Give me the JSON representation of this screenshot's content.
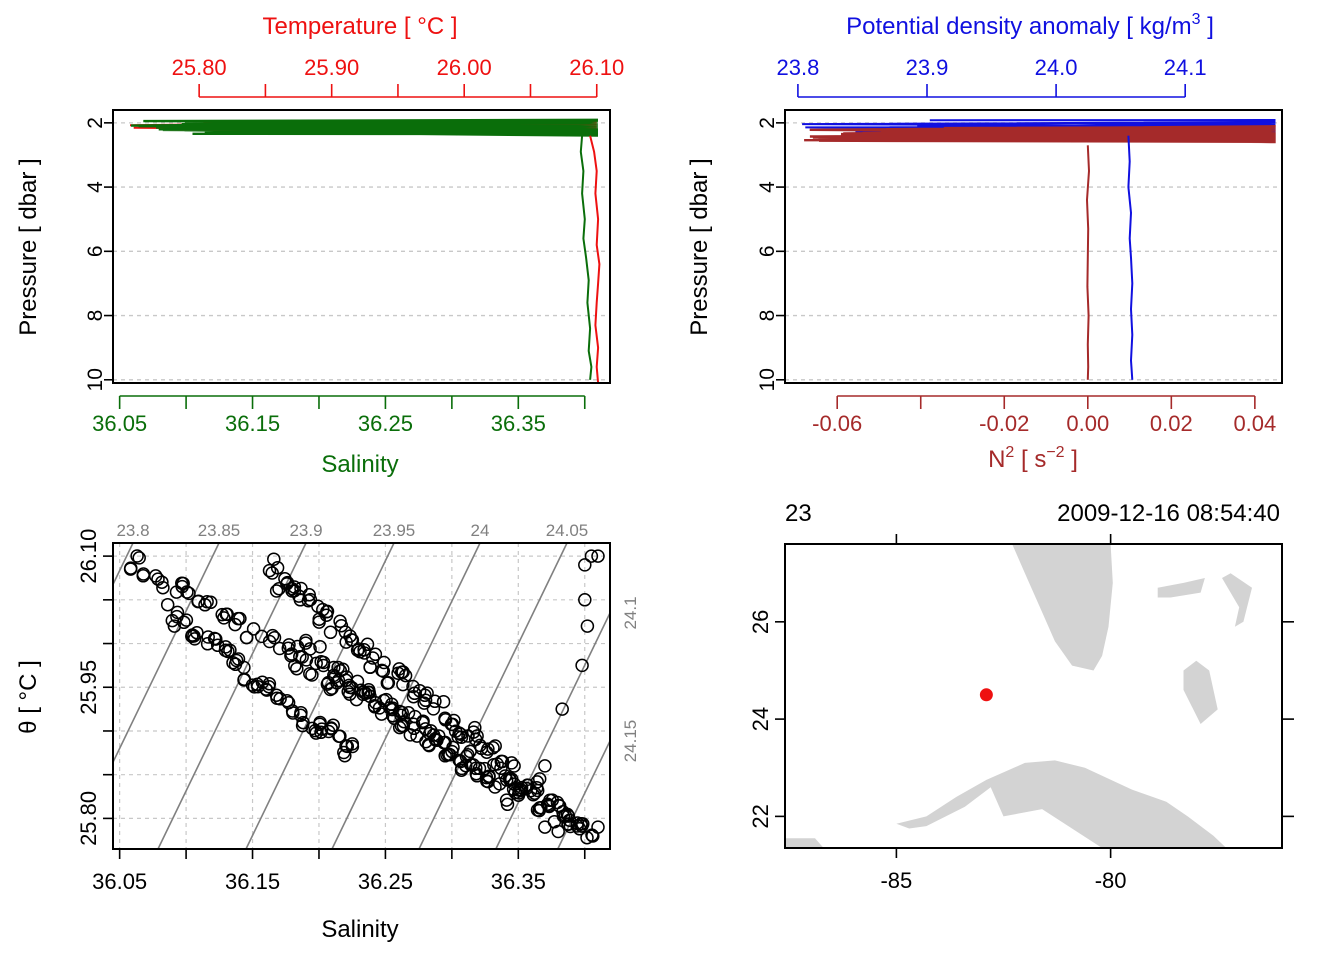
{
  "colors": {
    "temperature": "#ee1111",
    "salinity": "#0a6e0a",
    "density": "#1010e0",
    "n2": "#a52a2a",
    "grid": "#c8c8c8",
    "isopycnal": "#808080",
    "land": "#d3d3d3",
    "station": "#ee1111"
  },
  "chart_data": [
    {
      "id": "ts_profile",
      "type": "line",
      "title_top": "Temperature [ °C ]",
      "xlabel_bottom": "Salinity",
      "ylabel": "Pressure [ dbar ]",
      "ylim": [
        10.1,
        1.6
      ],
      "y_ticks": [
        2,
        4,
        6,
        8,
        10
      ],
      "y_tick_labels": [
        "2",
        "4",
        "6",
        "8",
        "10"
      ],
      "top_axis": {
        "range": [
          25.735,
          26.11
        ],
        "ticks": [
          25.8,
          25.85,
          25.9,
          25.95,
          26.0,
          26.05,
          26.1
        ],
        "labels": [
          "25.80",
          "",
          "25.90",
          "",
          "26.00",
          "",
          "26.10"
        ]
      },
      "bottom_axis": {
        "range": [
          36.045,
          36.419
        ],
        "ticks": [
          36.05,
          36.1,
          36.15,
          36.2,
          36.25,
          36.3,
          36.35,
          36.4
        ],
        "labels": [
          "36.05",
          "",
          "36.15",
          "",
          "36.25",
          "",
          "36.35",
          ""
        ]
      },
      "series": [
        {
          "name": "Temperature",
          "color_key": "temperature",
          "x": [
            26.095,
            26.098,
            26.1,
            26.099,
            26.101,
            26.1,
            26.102,
            26.101,
            26.1,
            26.099,
            26.101,
            26.1,
            26.101
          ],
          "y": [
            2.4,
            2.9,
            3.5,
            4.2,
            5.0,
            5.8,
            6.4,
            7.0,
            7.6,
            8.3,
            9.0,
            9.6,
            10.1
          ]
        },
        {
          "name": "Salinity",
          "color_key": "salinity",
          "x": [
            36.398,
            36.397,
            36.399,
            36.398,
            36.4,
            36.399,
            36.401,
            36.403,
            36.402,
            36.404,
            36.403,
            36.405,
            36.404
          ],
          "y": [
            2.4,
            2.9,
            3.5,
            4.2,
            5.0,
            5.6,
            6.2,
            6.9,
            7.6,
            8.4,
            9.1,
            9.6,
            10.0
          ]
        }
      ],
      "surface_temperature_loops": {
        "x": [
          25.74,
          26.1
        ],
        "y": [
          1.9,
          2.3
        ]
      },
      "surface_salinity_loops": {
        "x": [
          36.055,
          36.41
        ],
        "y": [
          1.9,
          2.4
        ]
      }
    },
    {
      "id": "density_n2_profile",
      "type": "line",
      "title_top": "Potential density anomaly [ kg/m",
      "title_top_sup": "3",
      "title_top_end": " ]",
      "xlabel_bottom": "N",
      "xlabel_bottom_sup": "2",
      "xlabel_bottom_mid": " [ s",
      "xlabel_bottom_sup2": "−2",
      "xlabel_bottom_end": " ]",
      "ylabel": "Pressure [ dbar ]",
      "ylim": [
        10.1,
        1.6
      ],
      "y_ticks": [
        2,
        4,
        6,
        8,
        10
      ],
      "y_tick_labels": [
        "2",
        "4",
        "6",
        "8",
        "10"
      ],
      "top_axis": {
        "range": [
          23.79,
          24.175
        ],
        "ticks": [
          23.8,
          23.9,
          24.0,
          24.1
        ],
        "labels": [
          "23.8",
          "23.9",
          "24.0",
          "24.1"
        ]
      },
      "bottom_axis": {
        "range": [
          -0.0725,
          0.0465
        ],
        "ticks": [
          -0.06,
          -0.04,
          -0.02,
          0.0,
          0.02,
          0.04
        ],
        "labels": [
          "-0.06",
          "",
          "-0.02",
          "0.00",
          "0.02",
          "0.04"
        ]
      },
      "series": [
        {
          "name": "Potential density anomaly",
          "color_key": "density",
          "x": [
            24.056,
            24.057,
            24.056,
            24.058,
            24.057,
            24.058,
            24.059,
            24.058,
            24.059,
            24.058,
            24.059
          ],
          "y": [
            2.4,
            3.2,
            4.0,
            4.8,
            5.6,
            6.2,
            7.0,
            7.8,
            8.6,
            9.4,
            10.0
          ]
        },
        {
          "name": "N2",
          "color_key": "n2",
          "x": [
            0.0,
            0.0003,
            -0.0002,
            0.0001,
            0.0,
            -0.0001,
            0.0002,
            0.0,
            0.0001,
            0.0
          ],
          "y": [
            2.7,
            3.5,
            4.4,
            5.3,
            6.2,
            7.1,
            8.0,
            8.9,
            9.6,
            10.0
          ]
        }
      ],
      "surface_density_loops": {
        "x": [
          23.8,
          24.17
        ],
        "y": [
          1.9,
          2.4
        ]
      },
      "surface_n2_loops": {
        "x": [
          -0.071,
          0.045
        ],
        "y": [
          2.1,
          2.6
        ]
      }
    },
    {
      "id": "ts_diagram",
      "type": "scatter",
      "xlabel": "Salinity",
      "ylabel": "θ [ °C ]",
      "xlim": [
        36.045,
        36.419
      ],
      "ylim": [
        25.765,
        26.115
      ],
      "x_ticks": [
        36.05,
        36.1,
        36.15,
        36.2,
        36.25,
        36.3,
        36.35,
        36.4
      ],
      "x_tick_labels": [
        "36.05",
        "",
        "36.15",
        "",
        "36.25",
        "",
        "36.35",
        ""
      ],
      "y_ticks": [
        25.8,
        25.85,
        25.9,
        25.95,
        26.0,
        26.05,
        26.1
      ],
      "y_tick_labels": [
        "25.80",
        "",
        "",
        "25.95",
        "",
        "",
        "26.10"
      ],
      "isopycnals_top": [
        "23.8",
        "23.85",
        "23.9",
        "23.95",
        "24",
        "24.05"
      ],
      "isopycnals_right": [
        "24.1",
        "24.15"
      ],
      "bands": [
        {
          "s0": 36.06,
          "t0": 26.095,
          "s1": 36.405,
          "t1": 25.785,
          "n": 70,
          "spread_t": 0.012
        },
        {
          "s0": 36.085,
          "t0": 26.04,
          "s1": 36.225,
          "t1": 25.875,
          "n": 40,
          "spread_t": 0.012
        },
        {
          "s0": 36.16,
          "t0": 26.09,
          "s1": 36.4,
          "t1": 25.78,
          "n": 85,
          "spread_t": 0.014
        },
        {
          "s0": 36.185,
          "t0": 26.0,
          "s1": 36.34,
          "t1": 25.83,
          "n": 45,
          "spread_t": 0.012
        }
      ],
      "extra_points": [
        {
          "s": 36.4,
          "t": 26.09
        },
        {
          "s": 36.405,
          "t": 26.1
        },
        {
          "s": 36.41,
          "t": 26.1
        },
        {
          "s": 36.4,
          "t": 26.05
        },
        {
          "s": 36.402,
          "t": 26.02
        },
        {
          "s": 36.398,
          "t": 25.975
        },
        {
          "s": 36.383,
          "t": 25.925
        },
        {
          "s": 36.37,
          "t": 25.86
        },
        {
          "s": 36.345,
          "t": 25.845
        },
        {
          "s": 36.37,
          "t": 25.79
        },
        {
          "s": 36.38,
          "t": 25.785
        },
        {
          "s": 36.41,
          "t": 25.79
        }
      ]
    },
    {
      "id": "station_map",
      "type": "map",
      "top_left_label": "23",
      "top_right_label": "2009-12-16 08:54:40",
      "xlim": [
        -87.6,
        -76.0
      ],
      "ylim": [
        21.35,
        27.6
      ],
      "x_ticks": [
        -85,
        -80
      ],
      "x_tick_labels": [
        "-85",
        "-80"
      ],
      "y_ticks": [
        22,
        24,
        26
      ],
      "y_tick_labels": [
        "22",
        "24",
        "26"
      ],
      "station": {
        "lon": -82.9,
        "lat": 24.5
      },
      "coastlines": [
        {
          "name": "Florida",
          "lonlat": [
            [
              -82.3,
              27.6
            ],
            [
              -82.0,
              27.0
            ],
            [
              -81.6,
              26.2
            ],
            [
              -81.3,
              25.6
            ],
            [
              -80.9,
              25.1
            ],
            [
              -80.4,
              25.0
            ],
            [
              -80.2,
              25.3
            ],
            [
              -80.05,
              25.9
            ],
            [
              -79.95,
              26.8
            ],
            [
              -80.0,
              27.6
            ]
          ]
        },
        {
          "name": "Grand Bahama",
          "lonlat": [
            [
              -78.9,
              26.7
            ],
            [
              -78.3,
              26.8
            ],
            [
              -77.8,
              26.9
            ],
            [
              -77.9,
              26.6
            ],
            [
              -78.6,
              26.5
            ],
            [
              -78.9,
              26.5
            ]
          ]
        },
        {
          "name": "Abaco",
          "lonlat": [
            [
              -77.2,
              27.0
            ],
            [
              -76.7,
              26.7
            ],
            [
              -76.9,
              26.0
            ],
            [
              -77.1,
              25.9
            ],
            [
              -77.0,
              26.3
            ],
            [
              -77.4,
              26.9
            ]
          ]
        },
        {
          "name": "Andros",
          "lonlat": [
            [
              -78.0,
              25.2
            ],
            [
              -77.7,
              25.0
            ],
            [
              -77.5,
              24.2
            ],
            [
              -77.9,
              23.9
            ],
            [
              -78.3,
              24.6
            ],
            [
              -78.3,
              25.0
            ]
          ]
        },
        {
          "name": "Cuba",
          "lonlat": [
            [
              -85.0,
              21.85
            ],
            [
              -84.3,
              22.0
            ],
            [
              -83.6,
              22.4
            ],
            [
              -82.9,
              22.75
            ],
            [
              -82.0,
              23.1
            ],
            [
              -81.3,
              23.15
            ],
            [
              -80.6,
              23.0
            ],
            [
              -79.5,
              22.55
            ],
            [
              -78.7,
              22.3
            ],
            [
              -78.2,
              22.0
            ],
            [
              -77.6,
              21.6
            ],
            [
              -77.3,
              21.35
            ],
            [
              -80.2,
              21.35
            ],
            [
              -81.6,
              22.15
            ],
            [
              -82.5,
              22.0
            ],
            [
              -82.8,
              22.6
            ],
            [
              -83.4,
              22.2
            ],
            [
              -84.3,
              21.8
            ],
            [
              -84.7,
              21.75
            ]
          ]
        },
        {
          "name": "Yucatan tip",
          "lonlat": [
            [
              -87.6,
              21.55
            ],
            [
              -86.9,
              21.55
            ],
            [
              -86.7,
              21.35
            ],
            [
              -87.6,
              21.35
            ]
          ]
        }
      ]
    }
  ]
}
